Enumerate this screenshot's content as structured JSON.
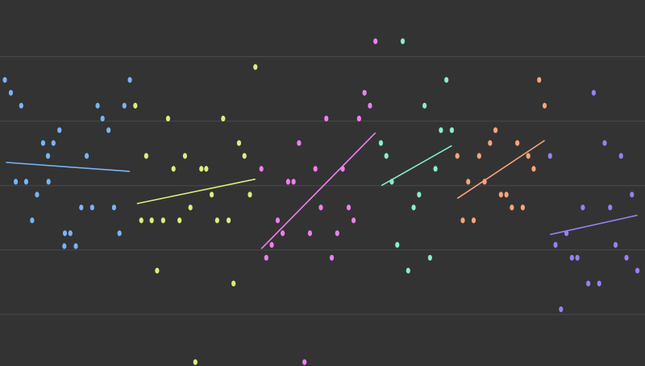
{
  "chart_data": {
    "type": "scatter",
    "title": "",
    "xlabel": "",
    "ylabel": "",
    "xlim": [
      0,
      117
    ],
    "ylim": [
      0,
      28.4
    ],
    "grid": true,
    "legend": "none",
    "colors": {
      "background": "#333333",
      "grid": "#4a4a4a"
    },
    "groups": [
      {
        "color": "#79b4f7",
        "points": [
          [
            0.3,
            22.2
          ],
          [
            1.4,
            21.2
          ],
          [
            3.3,
            20.2
          ],
          [
            8.2,
            16.3
          ],
          [
            7.3,
            17.3
          ],
          [
            9.2,
            17.3
          ],
          [
            10.3,
            18.3
          ],
          [
            15.3,
            16.3
          ],
          [
            2.3,
            14.3
          ],
          [
            4.2,
            14.3
          ],
          [
            6.2,
            13.3
          ],
          [
            8.3,
            14.3
          ],
          [
            5.3,
            11.3
          ],
          [
            11.3,
            10.3
          ],
          [
            12.3,
            10.3
          ],
          [
            11.2,
            9.3
          ],
          [
            13.3,
            9.3
          ],
          [
            14.3,
            12.3
          ],
          [
            16.3,
            12.3
          ],
          [
            17.3,
            20.2
          ],
          [
            18.2,
            19.2
          ],
          [
            19.3,
            18.3
          ],
          [
            20.3,
            12.3
          ],
          [
            21.3,
            10.3
          ],
          [
            22.2,
            20.2
          ],
          [
            23.2,
            22.2
          ]
        ],
        "trend": [
          [
            0.5,
            15.8
          ],
          [
            23.2,
            15.1
          ]
        ]
      },
      {
        "color": "#d9f07c",
        "points": [
          [
            24.2,
            20.2
          ],
          [
            26.2,
            16.3
          ],
          [
            25.3,
            11.3
          ],
          [
            27.2,
            11.3
          ],
          [
            28.2,
            7.4
          ],
          [
            29.3,
            11.3
          ],
          [
            30.2,
            19.2
          ],
          [
            31.2,
            15.3
          ],
          [
            32.3,
            11.3
          ],
          [
            33.3,
            16.3
          ],
          [
            34.3,
            12.3
          ],
          [
            35.2,
            0.3
          ],
          [
            36.3,
            15.3
          ],
          [
            37.2,
            15.3
          ],
          [
            38.2,
            13.3
          ],
          [
            39.2,
            11.3
          ],
          [
            40.3,
            19.2
          ],
          [
            41.3,
            11.3
          ],
          [
            42.2,
            6.4
          ],
          [
            43.2,
            17.3
          ],
          [
            44.2,
            16.3
          ],
          [
            45.2,
            13.3
          ],
          [
            46.2,
            23.2
          ]
        ],
        "trend": [
          [
            24.5,
            12.6
          ],
          [
            46.2,
            14.5
          ]
        ]
      },
      {
        "color": "#f07ef0",
        "points": [
          [
            47.3,
            15.3
          ],
          [
            48.2,
            8.4
          ],
          [
            49.2,
            9.4
          ],
          [
            50.3,
            11.3
          ],
          [
            51.2,
            10.3
          ],
          [
            52.2,
            14.3
          ],
          [
            53.2,
            14.3
          ],
          [
            54.2,
            17.3
          ],
          [
            55.2,
            0.3
          ],
          [
            56.2,
            10.3
          ],
          [
            57.2,
            15.3
          ],
          [
            58.2,
            12.3
          ],
          [
            59.2,
            19.2
          ],
          [
            60.2,
            8.4
          ],
          [
            61.2,
            10.3
          ],
          [
            62.2,
            15.3
          ],
          [
            63.3,
            12.3
          ],
          [
            64.2,
            11.3
          ],
          [
            65.2,
            19.2
          ],
          [
            66.2,
            21.2
          ],
          [
            67.2,
            20.2
          ],
          [
            68.2,
            25.2
          ]
        ],
        "trend": [
          [
            47.3,
            9.1
          ],
          [
            68.2,
            18.1
          ]
        ]
      },
      {
        "color": "#86f0c7",
        "points": [
          [
            69.2,
            17.3
          ],
          [
            70.2,
            16.3
          ],
          [
            71.2,
            14.3
          ],
          [
            72.2,
            9.4
          ],
          [
            73.2,
            25.2
          ],
          [
            74.2,
            7.4
          ],
          [
            75.2,
            12.3
          ],
          [
            76.2,
            13.3
          ],
          [
            77.2,
            20.2
          ],
          [
            78.2,
            8.4
          ],
          [
            79.2,
            15.3
          ],
          [
            80.2,
            18.3
          ],
          [
            81.2,
            22.2
          ],
          [
            82.2,
            18.3
          ]
        ],
        "trend": [
          [
            69.3,
            14.0
          ],
          [
            82.2,
            17.1
          ]
        ]
      },
      {
        "color": "#f9a479",
        "points": [
          [
            83.2,
            16.3
          ],
          [
            84.2,
            11.3
          ],
          [
            85.2,
            14.3
          ],
          [
            86.2,
            11.3
          ],
          [
            87.2,
            16.3
          ],
          [
            88.2,
            14.3
          ],
          [
            89.2,
            17.3
          ],
          [
            90.2,
            18.3
          ],
          [
            91.2,
            13.3
          ],
          [
            92.2,
            13.3
          ],
          [
            93.2,
            12.3
          ],
          [
            94.2,
            17.3
          ],
          [
            95.2,
            12.3
          ],
          [
            96.2,
            16.3
          ],
          [
            97.2,
            15.3
          ],
          [
            98.2,
            22.2
          ],
          [
            99.2,
            20.2
          ]
        ],
        "trend": [
          [
            83.2,
            13.0
          ],
          [
            99.2,
            17.5
          ]
        ]
      },
      {
        "color": "#9a7ef5",
        "points": [
          [
            100.2,
            16.3
          ],
          [
            101.2,
            9.4
          ],
          [
            102.2,
            4.4
          ],
          [
            103.2,
            10.3
          ],
          [
            104.2,
            8.4
          ],
          [
            105.2,
            8.4
          ],
          [
            106.2,
            12.3
          ],
          [
            107.2,
            6.4
          ],
          [
            108.2,
            21.2
          ],
          [
            109.2,
            6.4
          ],
          [
            110.2,
            17.3
          ],
          [
            111.2,
            12.3
          ],
          [
            112.2,
            9.4
          ],
          [
            113.2,
            16.3
          ],
          [
            114.2,
            8.4
          ],
          [
            115.2,
            13.3
          ],
          [
            116.2,
            7.4
          ]
        ],
        "trend": [
          [
            100.2,
            10.2
          ],
          [
            116.2,
            11.7
          ]
        ]
      }
    ]
  }
}
